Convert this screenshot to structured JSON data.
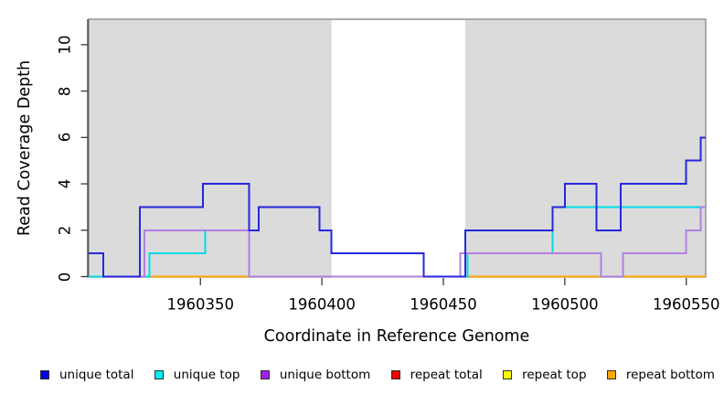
{
  "chart_data": {
    "type": "line",
    "subtype": "step-coverage",
    "title": "",
    "xlabel": "Coordinate in Reference Genome",
    "ylabel": "Read Coverage Depth",
    "xlim": [
      1960304,
      1960558
    ],
    "ylim": [
      0,
      11.1
    ],
    "xticks": [
      1960350,
      1960400,
      1960450,
      1960500,
      1960550
    ],
    "yticks": [
      0,
      2,
      4,
      6,
      8,
      10
    ],
    "grid": false,
    "plot_bg_color": "#DBDBDB",
    "plot_border_color": "#8F8F8F",
    "unshaded_gap_x_range": [
      1960404,
      1960459
    ],
    "shaded_x_ranges": [
      [
        1960304,
        1960404
      ],
      [
        1960459,
        1960558
      ]
    ],
    "series": [
      {
        "name": "repeat top",
        "color": "#FFFF00",
        "steps": [
          [
            1960304,
            0
          ]
        ]
      },
      {
        "name": "repeat total",
        "color": "#EE2222",
        "steps": [
          [
            1960304,
            0
          ]
        ]
      },
      {
        "name": "repeat bottom",
        "color": "#FFA500",
        "steps": [
          [
            1960304,
            0
          ]
        ]
      },
      {
        "name": "unique top",
        "color": "#00DCE8",
        "steps": [
          [
            1960304,
            0
          ],
          [
            1960329,
            1
          ],
          [
            1960352,
            2
          ],
          [
            1960374,
            3
          ],
          [
            1960399,
            2
          ],
          [
            1960404,
            1
          ],
          [
            1960442,
            0
          ],
          [
            1960460,
            1
          ],
          [
            1960495,
            3
          ]
        ]
      },
      {
        "name": "unique bottom",
        "color": "#B27FE3",
        "steps": [
          [
            1960304,
            1
          ],
          [
            1960310,
            0
          ],
          [
            1960327,
            2
          ],
          [
            1960370,
            0
          ],
          [
            1960457,
            1
          ],
          [
            1960515,
            0
          ],
          [
            1960524,
            1
          ],
          [
            1960550,
            2
          ],
          [
            1960556,
            3
          ]
        ]
      },
      {
        "name": "unique total",
        "color": "#2626DE",
        "steps": [
          [
            1960304,
            1
          ],
          [
            1960310,
            0
          ],
          [
            1960325,
            3
          ],
          [
            1960351,
            4
          ],
          [
            1960370,
            2
          ],
          [
            1960374,
            3
          ],
          [
            1960399,
            2
          ],
          [
            1960404,
            1
          ],
          [
            1960442,
            0
          ],
          [
            1960459,
            2
          ],
          [
            1960495,
            3
          ],
          [
            1960500,
            4
          ],
          [
            1960513,
            2
          ],
          [
            1960523,
            4
          ],
          [
            1960550,
            5
          ],
          [
            1960556,
            6
          ]
        ]
      }
    ]
  },
  "axes": {
    "x_label": "Coordinate in Reference Genome",
    "y_label": "Read Coverage Depth"
  },
  "legend": {
    "items": [
      {
        "label": "unique total",
        "color": "#0000EE"
      },
      {
        "label": "unique top",
        "color": "#00EEEE"
      },
      {
        "label": "unique bottom",
        "color": "#A020F0"
      },
      {
        "label": "repeat total",
        "color": "#EE0000"
      },
      {
        "label": "repeat top",
        "color": "#FFFF00"
      },
      {
        "label": "repeat bottom",
        "color": "#FFA500"
      }
    ]
  }
}
